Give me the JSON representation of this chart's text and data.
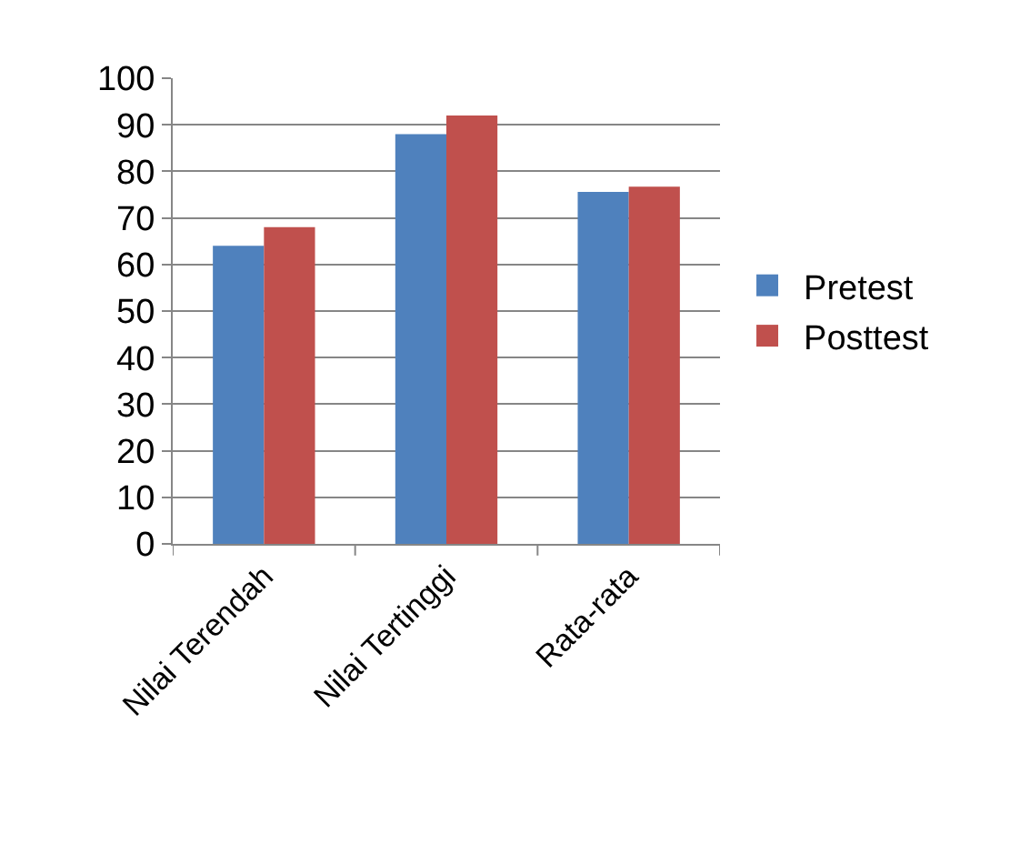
{
  "chart_data": {
    "type": "bar",
    "categories": [
      "Nilai Terendah",
      "Nilai Tertinggi",
      "Rata-rata"
    ],
    "series": [
      {
        "name": "Pretest",
        "color": "#4f81bd",
        "values": [
          64,
          88,
          75.6
        ]
      },
      {
        "name": "Posttest",
        "color": "#c0504d",
        "values": [
          68,
          92,
          76.7
        ]
      }
    ],
    "ylim": [
      0,
      100
    ],
    "yticks": [
      0,
      10,
      20,
      30,
      40,
      50,
      60,
      70,
      80,
      90,
      100
    ],
    "grid": "y",
    "legend": "right"
  }
}
